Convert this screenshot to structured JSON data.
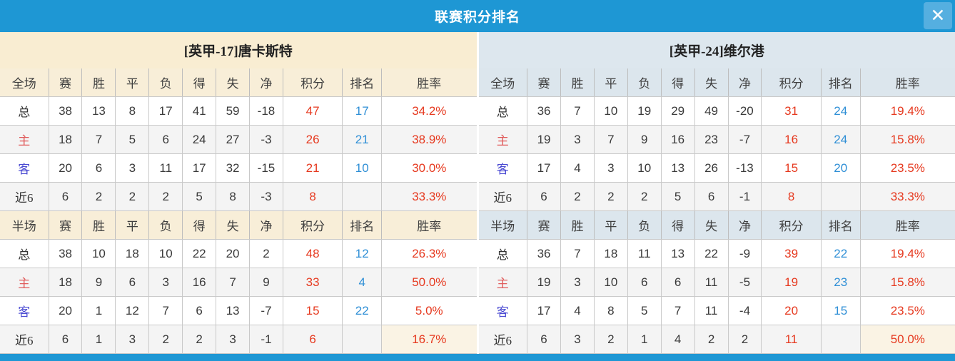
{
  "window": {
    "title": "联赛积分排名",
    "close_label": "✕"
  },
  "table": {
    "stat_columns": [
      "赛",
      "胜",
      "平",
      "负",
      "得",
      "失",
      "净",
      "积分",
      "排名",
      "胜率"
    ]
  },
  "colors": {
    "title_bar_blue": "#1e97d4",
    "close_button_blue": "#55afe0",
    "left_header_cream": "#f9edd2",
    "right_header_blue_gray": "#dde7ee",
    "alt_row_gray": "#f4f4f4",
    "points_red": "#e6391f",
    "rank_blue": "#2f8fd6",
    "home_label_red": "#e05a5a",
    "away_label_blue": "#4a4ad2"
  },
  "teams": [
    {
      "name": "[英甲-17]唐卡斯特",
      "theme": "cream",
      "sections": [
        {
          "label": "全场",
          "rows": [
            {
              "label": "总",
              "label_style": "normal",
              "stats": [
                "38",
                "13",
                "8",
                "17",
                "41",
                "59",
                "-18"
              ],
              "points": "47",
              "rank": "17",
              "rate": "34.2%"
            },
            {
              "label": "主",
              "label_style": "home",
              "stats": [
                "18",
                "7",
                "5",
                "6",
                "24",
                "27",
                "-3"
              ],
              "points": "26",
              "rank": "21",
              "rate": "38.9%"
            },
            {
              "label": "客",
              "label_style": "away",
              "stats": [
                "20",
                "6",
                "3",
                "11",
                "17",
                "32",
                "-15"
              ],
              "points": "21",
              "rank": "10",
              "rate": "30.0%"
            },
            {
              "label": "近6",
              "label_style": "normal",
              "stats": [
                "6",
                "2",
                "2",
                "2",
                "5",
                "8",
                "-3"
              ],
              "points": "8",
              "rank": "",
              "rate": "33.3%"
            }
          ]
        },
        {
          "label": "半场",
          "rows": [
            {
              "label": "总",
              "label_style": "normal",
              "stats": [
                "38",
                "10",
                "18",
                "10",
                "22",
                "20",
                "2"
              ],
              "points": "48",
              "rank": "12",
              "rate": "26.3%"
            },
            {
              "label": "主",
              "label_style": "home",
              "stats": [
                "18",
                "9",
                "6",
                "3",
                "16",
                "7",
                "9"
              ],
              "points": "33",
              "rank": "4",
              "rate": "50.0%"
            },
            {
              "label": "客",
              "label_style": "away",
              "stats": [
                "20",
                "1",
                "12",
                "7",
                "6",
                "13",
                "-7"
              ],
              "points": "15",
              "rank": "22",
              "rate": "5.0%"
            },
            {
              "label": "近6",
              "label_style": "normal",
              "stats": [
                "6",
                "1",
                "3",
                "2",
                "2",
                "3",
                "-1"
              ],
              "points": "6",
              "rank": "",
              "rate": "16.7%",
              "rate_highlight": true
            }
          ]
        }
      ]
    },
    {
      "name": "[英甲-24]维尔港",
      "theme": "blue",
      "sections": [
        {
          "label": "全场",
          "rows": [
            {
              "label": "总",
              "label_style": "normal",
              "stats": [
                "36",
                "7",
                "10",
                "19",
                "29",
                "49",
                "-20"
              ],
              "points": "31",
              "rank": "24",
              "rate": "19.4%"
            },
            {
              "label": "主",
              "label_style": "home",
              "stats": [
                "19",
                "3",
                "7",
                "9",
                "16",
                "23",
                "-7"
              ],
              "points": "16",
              "rank": "24",
              "rate": "15.8%"
            },
            {
              "label": "客",
              "label_style": "away",
              "stats": [
                "17",
                "4",
                "3",
                "10",
                "13",
                "26",
                "-13"
              ],
              "points": "15",
              "rank": "20",
              "rate": "23.5%"
            },
            {
              "label": "近6",
              "label_style": "normal",
              "stats": [
                "6",
                "2",
                "2",
                "2",
                "5",
                "6",
                "-1"
              ],
              "points": "8",
              "rank": "",
              "rate": "33.3%"
            }
          ]
        },
        {
          "label": "半场",
          "rows": [
            {
              "label": "总",
              "label_style": "normal",
              "stats": [
                "36",
                "7",
                "18",
                "11",
                "13",
                "22",
                "-9"
              ],
              "points": "39",
              "rank": "22",
              "rate": "19.4%"
            },
            {
              "label": "主",
              "label_style": "home",
              "stats": [
                "19",
                "3",
                "10",
                "6",
                "6",
                "11",
                "-5"
              ],
              "points": "19",
              "rank": "23",
              "rate": "15.8%"
            },
            {
              "label": "客",
              "label_style": "away",
              "stats": [
                "17",
                "4",
                "8",
                "5",
                "7",
                "11",
                "-4"
              ],
              "points": "20",
              "rank": "15",
              "rate": "23.5%"
            },
            {
              "label": "近6",
              "label_style": "normal",
              "stats": [
                "6",
                "3",
                "2",
                "1",
                "4",
                "2",
                "2"
              ],
              "points": "11",
              "rank": "",
              "rate": "50.0%",
              "rate_highlight": true
            }
          ]
        }
      ]
    }
  ]
}
